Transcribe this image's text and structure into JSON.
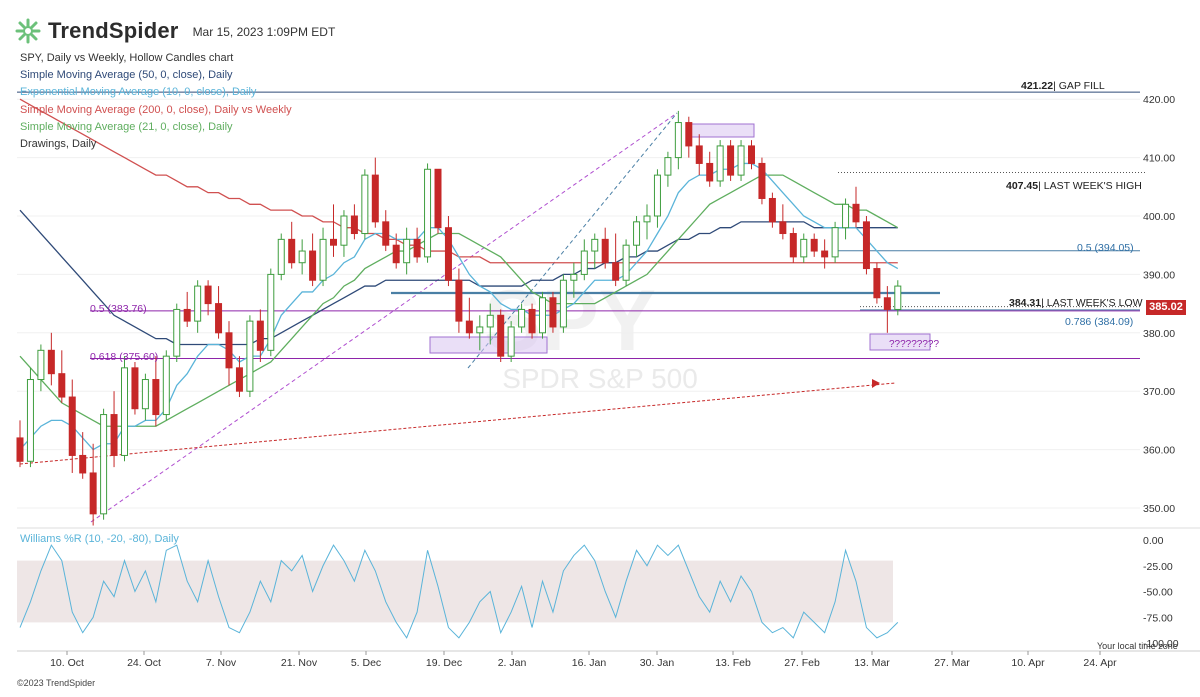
{
  "header": {
    "logo_text": "TrendSpider",
    "timestamp": "Mar 15, 2023 1:09PM EDT"
  },
  "legend": [
    {
      "text": "SPY, Daily vs Weekly, Hollow Candles chart",
      "color": "#333333"
    },
    {
      "text": "Simple Moving Average (50, 0, close), Daily",
      "color": "#2f4a78"
    },
    {
      "text": "Exponential Moving Average (10, 0, close), Daily",
      "color": "#5ab4d9"
    },
    {
      "text": "Simple Moving Average (200, 0, close), Daily vs Weekly",
      "color": "#d05050"
    },
    {
      "text": "Simple Moving Average (21, 0, close), Daily",
      "color": "#5fae5f"
    },
    {
      "text": "Drawings, Daily",
      "color": "#333333"
    }
  ],
  "watermark": {
    "symbol": "SPY",
    "name": "SPDR S&P 500"
  },
  "colors": {
    "bear": "#c62828",
    "bull": "#3f9d3f",
    "sma50": "#2f4a78",
    "ema10": "#5ab4d9",
    "sma200": "#d05050",
    "sma21": "#5fae5f",
    "fib": "#8e24aa",
    "hline": "#4a7fa5",
    "willr": "#5ab4d9"
  },
  "chart_data": [
    {
      "type": "candlestick",
      "title": "SPY, Daily vs Weekly, Hollow Candles chart",
      "x_tick_labels": [
        "10. Oct",
        "24. Oct",
        "7. Nov",
        "21. Nov",
        "5. Dec",
        "19. Dec",
        "2. Jan",
        "16. Jan",
        "30. Jan",
        "13. Feb",
        "27. Feb",
        "13. Mar",
        "27. Mar",
        "10. Apr",
        "24. Apr"
      ],
      "y_tick_labels": [
        "350.00",
        "360.00",
        "370.00",
        "380.00",
        "390.00",
        "400.00",
        "410.00",
        "420.00"
      ],
      "ylim": [
        346,
        424
      ],
      "last_price": "385.02",
      "ohlc": [
        [
          362,
          365,
          357,
          358
        ],
        [
          358,
          374,
          357,
          372
        ],
        [
          372,
          378,
          370,
          377
        ],
        [
          377,
          380,
          371,
          373
        ],
        [
          373,
          377,
          368,
          369
        ],
        [
          369,
          372,
          356,
          359
        ],
        [
          359,
          363,
          355,
          356
        ],
        [
          356,
          361,
          347,
          349
        ],
        [
          349,
          367,
          348,
          366
        ],
        [
          366,
          370,
          357,
          359
        ],
        [
          359,
          376,
          358,
          374
        ],
        [
          374,
          375,
          366,
          367
        ],
        [
          367,
          373,
          365,
          372
        ],
        [
          372,
          376,
          364,
          366
        ],
        [
          366,
          377,
          365,
          376
        ],
        [
          376,
          385,
          375,
          384
        ],
        [
          384,
          387,
          381,
          382
        ],
        [
          382,
          389,
          380,
          388
        ],
        [
          388,
          389,
          383,
          385
        ],
        [
          385,
          388,
          379,
          380
        ],
        [
          380,
          382,
          371,
          374
        ],
        [
          374,
          376,
          369,
          370
        ],
        [
          370,
          383,
          369,
          382
        ],
        [
          382,
          384,
          375,
          377
        ],
        [
          377,
          391,
          376,
          390
        ],
        [
          390,
          397,
          389,
          396
        ],
        [
          396,
          399,
          391,
          392
        ],
        [
          392,
          396,
          390,
          394
        ],
        [
          394,
          397,
          388,
          389
        ],
        [
          389,
          398,
          388,
          396
        ],
        [
          396,
          402,
          393,
          395
        ],
        [
          395,
          401,
          393,
          400
        ],
        [
          400,
          402,
          396,
          397
        ],
        [
          397,
          408,
          396,
          407
        ],
        [
          407,
          410,
          398,
          399
        ],
        [
          399,
          401,
          394,
          395
        ],
        [
          395,
          397,
          391,
          392
        ],
        [
          392,
          398,
          390,
          396
        ],
        [
          396,
          398,
          392,
          393
        ],
        [
          393,
          409,
          392,
          408
        ],
        [
          408,
          408,
          397,
          398
        ],
        [
          398,
          400,
          388,
          389
        ],
        [
          389,
          391,
          380,
          382
        ],
        [
          382,
          386,
          379,
          380
        ],
        [
          380,
          383,
          377,
          381
        ],
        [
          381,
          385,
          378,
          383
        ],
        [
          383,
          384,
          375,
          376
        ],
        [
          376,
          382,
          375,
          381
        ],
        [
          381,
          385,
          380,
          384
        ],
        [
          384,
          385,
          379,
          380
        ],
        [
          380,
          387,
          379,
          386
        ],
        [
          386,
          387,
          380,
          381
        ],
        [
          381,
          390,
          380,
          389
        ],
        [
          389,
          392,
          386,
          390
        ],
        [
          390,
          396,
          389,
          394
        ],
        [
          394,
          397,
          391,
          396
        ],
        [
          396,
          398,
          391,
          392
        ],
        [
          392,
          397,
          388,
          389
        ],
        [
          389,
          396,
          388,
          395
        ],
        [
          395,
          400,
          393,
          399
        ],
        [
          399,
          402,
          396,
          400
        ],
        [
          400,
          408,
          398,
          407
        ],
        [
          407,
          411,
          405,
          410
        ],
        [
          410,
          418,
          408,
          416
        ],
        [
          416,
          417,
          410,
          412
        ],
        [
          412,
          414,
          407,
          409
        ],
        [
          409,
          411,
          405,
          406
        ],
        [
          406,
          413,
          405,
          412
        ],
        [
          412,
          413,
          406,
          407
        ],
        [
          407,
          413,
          406,
          412
        ],
        [
          412,
          413,
          408,
          409
        ],
        [
          409,
          410,
          402,
          403
        ],
        [
          403,
          404,
          398,
          399
        ],
        [
          399,
          402,
          396,
          397
        ],
        [
          397,
          398,
          392,
          393
        ],
        [
          393,
          397,
          392,
          396
        ],
        [
          396,
          397,
          393,
          394
        ],
        [
          394,
          396,
          391,
          393
        ],
        [
          393,
          399,
          392,
          398
        ],
        [
          398,
          403,
          396,
          402
        ],
        [
          402,
          405,
          398,
          399
        ],
        [
          399,
          400,
          390,
          391
        ],
        [
          391,
          392,
          385,
          386
        ],
        [
          386,
          388,
          380,
          384
        ],
        [
          384,
          389,
          383,
          388
        ]
      ],
      "ema10": [
        360,
        362,
        364,
        365,
        365,
        364,
        362,
        360,
        361,
        361,
        364,
        364,
        365,
        365,
        367,
        371,
        373,
        376,
        378,
        378,
        377,
        375,
        376,
        376,
        379,
        383,
        385,
        387,
        387,
        389,
        390,
        392,
        393,
        396,
        397,
        397,
        396,
        396,
        396,
        398,
        398,
        396,
        393,
        390,
        388,
        387,
        385,
        384,
        384,
        383,
        383,
        383,
        384,
        385,
        387,
        389,
        389,
        389,
        390,
        392,
        394,
        397,
        400,
        404,
        406,
        407,
        407,
        408,
        408,
        409,
        409,
        408,
        406,
        404,
        402,
        400,
        399,
        398,
        398,
        398,
        398,
        396,
        394,
        392,
        391
      ],
      "sma21": [
        376,
        374,
        372,
        370,
        368,
        367,
        366,
        365,
        364,
        364,
        364,
        364,
        364,
        364,
        365,
        366,
        367,
        368,
        369,
        370,
        371,
        372,
        373,
        374,
        375,
        377,
        379,
        381,
        383,
        385,
        386,
        388,
        389,
        391,
        392,
        393,
        394,
        394,
        395,
        396,
        397,
        397,
        397,
        396,
        395,
        394,
        393,
        391,
        389,
        387,
        386,
        385,
        385,
        385,
        385,
        385,
        386,
        387,
        388,
        389,
        390,
        392,
        394,
        396,
        398,
        400,
        402,
        403,
        404,
        405,
        406,
        407,
        407,
        407,
        406,
        405,
        404,
        403,
        402,
        402,
        401,
        401,
        400,
        399,
        398
      ],
      "sma50": [
        401,
        399,
        397,
        395,
        393,
        391,
        389,
        387,
        385,
        383,
        382,
        381,
        380,
        379,
        379,
        378,
        378,
        378,
        378,
        378,
        378,
        378,
        378,
        379,
        379,
        380,
        381,
        382,
        383,
        384,
        385,
        386,
        387,
        388,
        388,
        389,
        389,
        389,
        389,
        389,
        389,
        389,
        389,
        389,
        388,
        388,
        388,
        388,
        388,
        389,
        389,
        389,
        390,
        390,
        391,
        391,
        392,
        392,
        393,
        393,
        394,
        394,
        395,
        396,
        396,
        397,
        397,
        398,
        398,
        399,
        399,
        399,
        399,
        399,
        399,
        399,
        398,
        398,
        398,
        398,
        398,
        398,
        398,
        398,
        398
      ],
      "sma200": [
        420,
        419,
        418,
        417,
        416,
        415,
        414,
        413,
        412,
        411,
        410,
        409,
        408,
        407,
        407,
        406,
        405,
        405,
        404,
        404,
        403,
        403,
        402,
        402,
        401,
        401,
        401,
        400,
        400,
        399,
        399,
        398,
        398,
        397,
        397,
        396,
        396,
        395,
        395,
        394,
        394,
        394,
        393,
        393,
        393,
        392,
        392,
        392,
        392,
        392,
        392,
        392,
        392,
        392,
        392,
        392,
        392,
        392,
        392,
        392,
        392,
        392,
        392,
        392,
        392,
        392,
        392,
        392,
        392,
        392,
        392,
        392,
        392,
        392,
        392,
        392,
        392,
        392,
        392,
        392,
        392,
        392,
        392,
        392,
        392
      ],
      "levels": [
        {
          "label": "421.22",
          "text": "| GAP FILL",
          "price": 421.22
        },
        {
          "label": "407.45",
          "text": "| LAST WEEK'S HIGH",
          "price": 407.45
        },
        {
          "label": "0.5 (394.05)",
          "price": 394.05
        },
        {
          "label": "384.31",
          "text": "| LAST WEEK'S LOW",
          "price": 384.31
        },
        {
          "label": "0.786 (384.09)",
          "price": 384.09
        },
        {
          "label": "0.5 (383.76)",
          "price": 383.76
        },
        {
          "label": "0.618 (375.60)",
          "price": 375.6
        }
      ],
      "annotations": [
        "?????????"
      ]
    },
    {
      "type": "line",
      "title": "Williams %R (10, -20, -80), Daily",
      "y_tick_labels": [
        "0.00",
        "-25.00",
        "-50.00",
        "-75.00",
        "-100.00"
      ],
      "ylim": [
        -100,
        0
      ],
      "band": [
        -80,
        -20
      ],
      "values": [
        -85,
        -60,
        -30,
        -5,
        -20,
        -70,
        -90,
        -75,
        -40,
        -55,
        -20,
        -50,
        -30,
        -60,
        -10,
        -5,
        -40,
        -60,
        -20,
        -55,
        -85,
        -90,
        -70,
        -40,
        -60,
        -20,
        -30,
        -15,
        -50,
        -25,
        -5,
        -20,
        -40,
        -10,
        -30,
        -60,
        -80,
        -95,
        -70,
        -10,
        -45,
        -85,
        -95,
        -80,
        -60,
        -50,
        -90,
        -70,
        -45,
        -85,
        -40,
        -70,
        -30,
        -15,
        -5,
        -20,
        -50,
        -75,
        -40,
        -10,
        -25,
        -5,
        -15,
        -5,
        -30,
        -55,
        -70,
        -40,
        -60,
        -35,
        -50,
        -80,
        -90,
        -85,
        -95,
        -70,
        -80,
        -90,
        -60,
        -10,
        -40,
        -85,
        -95,
        -90,
        -80
      ]
    }
  ]
}
